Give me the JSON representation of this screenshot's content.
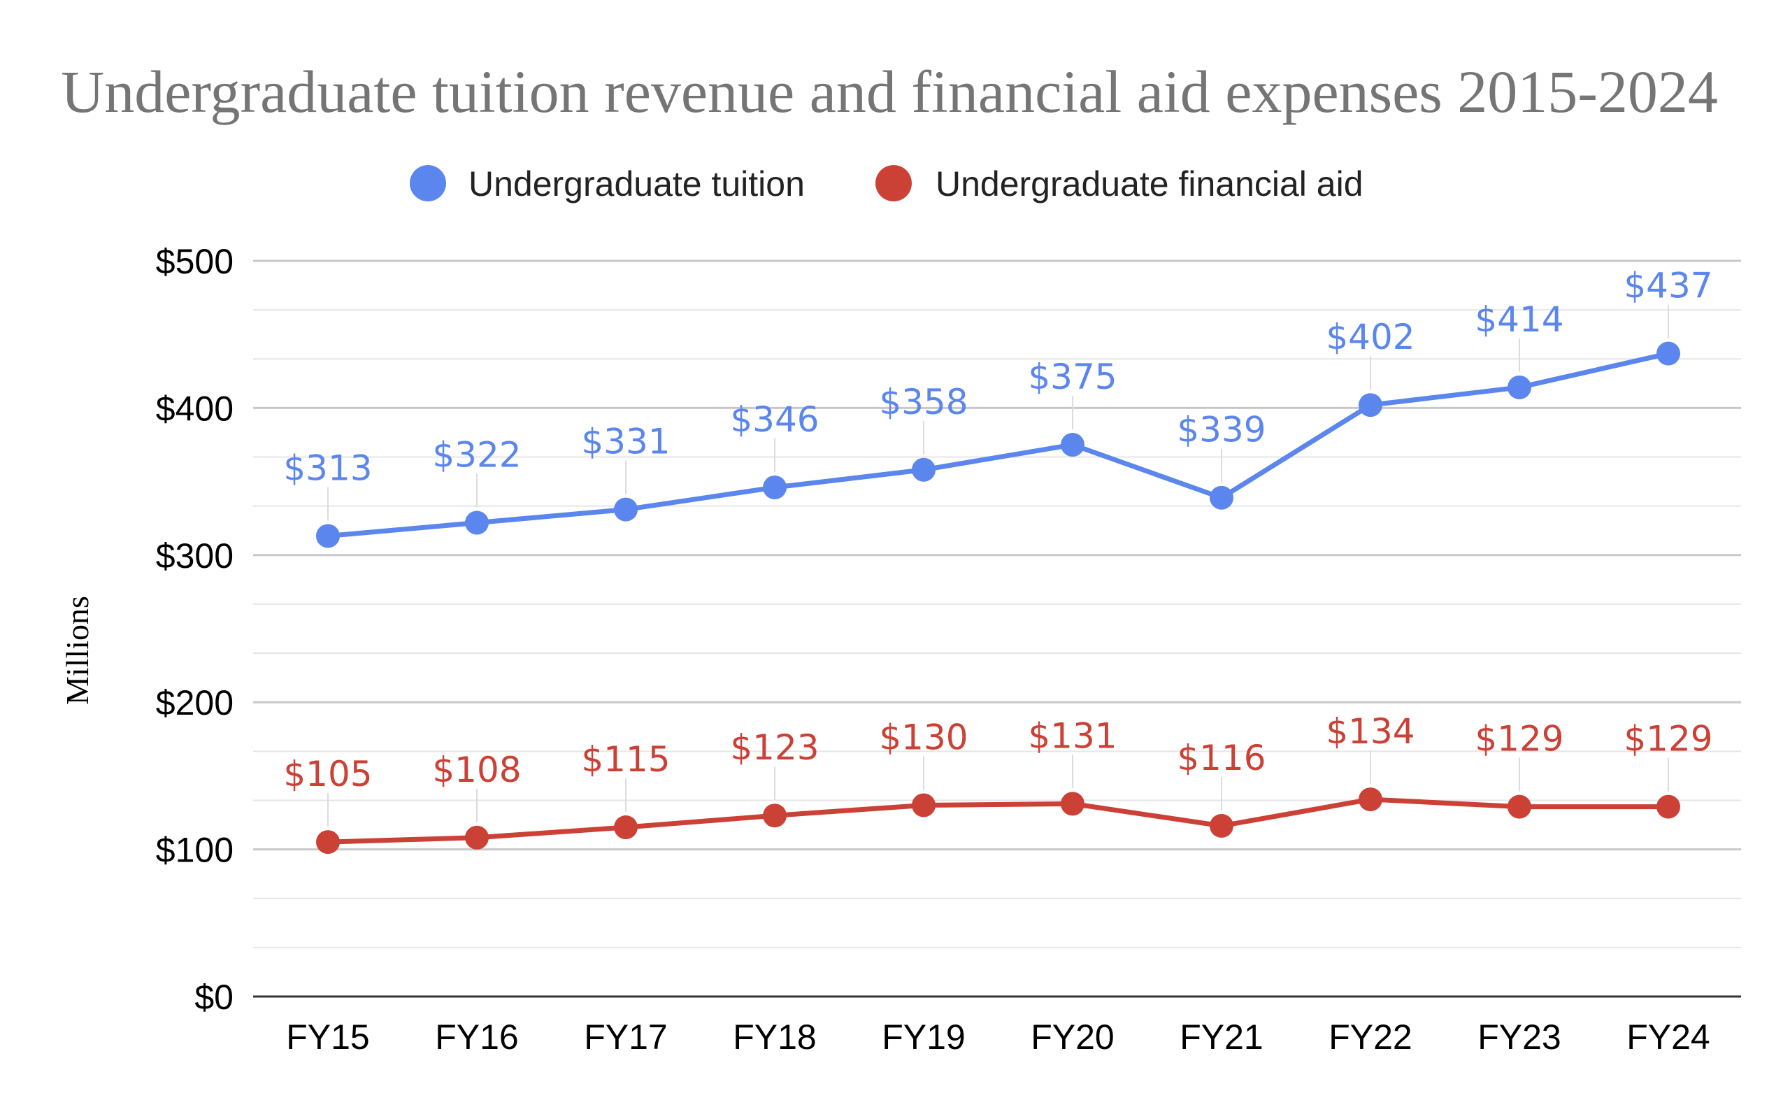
{
  "chart_data": {
    "type": "line",
    "title": "Undergraduate tuition revenue and financial aid expenses 2015-2024",
    "xlabel": "",
    "ylabel": "Millions",
    "categories": [
      "FY15",
      "FY16",
      "FY17",
      "FY18",
      "FY19",
      "FY20",
      "FY21",
      "FY22",
      "FY23",
      "FY24"
    ],
    "ylim": [
      0,
      500
    ],
    "yticks": [
      0,
      100,
      200,
      300,
      400,
      500
    ],
    "ytick_labels": [
      "$0",
      "$100",
      "$200",
      "$300",
      "$400",
      "$500"
    ],
    "grid": true,
    "legend_position": "top",
    "series": [
      {
        "name": "Undergraduate tuition",
        "color": "#5b86ee",
        "values": [
          313,
          322,
          331,
          346,
          358,
          375,
          339,
          402,
          414,
          437
        ],
        "labels": [
          "$313",
          "$322",
          "$331",
          "$346",
          "$358",
          "$375",
          "$339",
          "$402",
          "$414",
          "$437"
        ]
      },
      {
        "name": "Undergraduate financial aid",
        "color": "#cc4136",
        "values": [
          105,
          108,
          115,
          123,
          130,
          131,
          116,
          134,
          129,
          129
        ],
        "labels": [
          "$105",
          "$108",
          "$115",
          "$123",
          "$130",
          "$131",
          "$116",
          "$134",
          "$129",
          "$129"
        ]
      }
    ]
  }
}
